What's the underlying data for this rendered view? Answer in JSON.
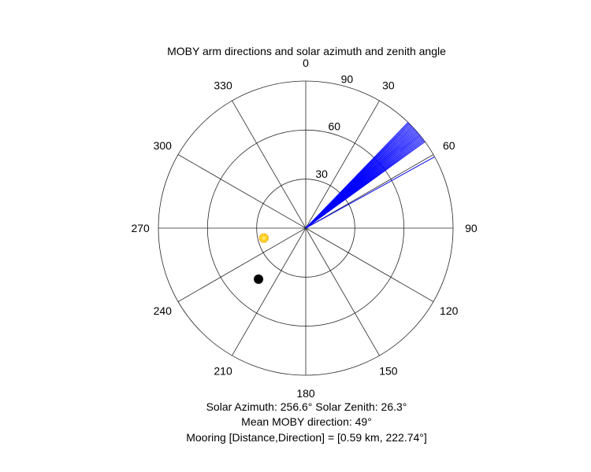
{
  "chart_data": {
    "type": "polar",
    "title": "MOBY arm directions and solar azimuth and zenith angle",
    "angle_direction": "clockwise",
    "zero_location": "top",
    "theta_ticks": [
      0,
      30,
      60,
      90,
      120,
      150,
      180,
      210,
      240,
      270,
      300,
      330
    ],
    "theta_tick_labels": [
      "0",
      "30",
      "60",
      "90",
      "120",
      "150",
      "180",
      "210",
      "240",
      "270",
      "300",
      "330"
    ],
    "r_ticks": [
      30,
      60,
      90
    ],
    "r_tick_labels": [
      "30",
      "60",
      "90"
    ],
    "rlim": [
      0,
      90
    ],
    "arm_color": "#0000ff",
    "arm_directions": [
      44,
      44.5,
      45,
      45.5,
      46,
      46.5,
      47,
      47.5,
      48,
      48.5,
      49,
      49.5,
      50,
      50.5,
      51,
      51.5,
      52,
      52.5,
      53,
      53.5,
      54
    ],
    "arm_length": 90,
    "reference_line": {
      "direction": 61,
      "length": 90,
      "color": "#0000ff"
    },
    "sun": {
      "azimuth": 256.6,
      "zenith": 26.3,
      "color": "#ffcc00",
      "marker": "sun"
    },
    "mooring": {
      "azimuth": 222.74,
      "radius": 42.5,
      "color": "#000000",
      "marker": "filled-circle"
    },
    "grid": true
  },
  "info": {
    "line1": "Solar Azimuth: 256.6°    Solar Zenith: 26.3°",
    "line2": "Mean MOBY direction: 49°",
    "line3": "Mooring [Distance,Direction] = [0.59 km, 222.74°]"
  }
}
